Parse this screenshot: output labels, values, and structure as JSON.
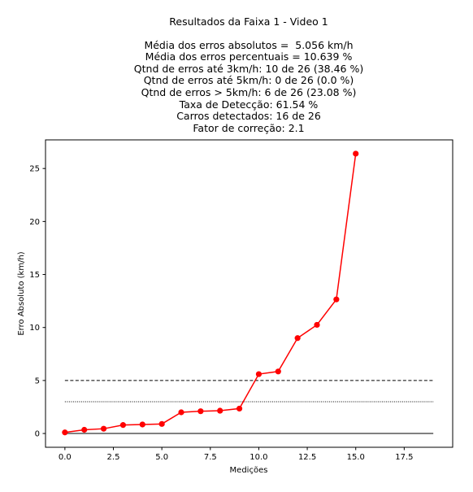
{
  "chart_data": {
    "type": "line",
    "title": "Resultados da Faixa 1 - Video 1",
    "stats_lines": [
      "Média dos erros absolutos =  5.056 km/h",
      "Média dos erros percentuais = 10.639 %",
      "Qtnd de erros até 3km/h: 10 de 26 (38.46 %)",
      "Qtnd de erros até 5km/h: 0 de 26 (0.0 %)",
      "Qtnd de erros > 5km/h: 6 de 26 (23.08 %)",
      "Taxa de Detecção: 61.54 %",
      "Carros detectados: 16 de 26",
      "Fator de correção: 2.1"
    ],
    "xlabel": "Medições",
    "ylabel": "Erro Absoluto (km/h)",
    "xlim": [
      -1.0,
      20.0
    ],
    "ylim": [
      -1.3,
      27.7
    ],
    "xticks": [
      0.0,
      2.5,
      5.0,
      7.5,
      10.0,
      12.5,
      15.0,
      17.5
    ],
    "xtick_labels": [
      "0.0",
      "2.5",
      "5.0",
      "7.5",
      "10.0",
      "12.5",
      "15.0",
      "17.5"
    ],
    "yticks": [
      0,
      5,
      10,
      15,
      20,
      25
    ],
    "ytick_labels": [
      "0",
      "5",
      "10",
      "15",
      "20",
      "25"
    ],
    "grid": false,
    "series": [
      {
        "color": "#ff0000",
        "marker": "circle",
        "x": [
          0,
          1,
          2,
          3,
          4,
          5,
          6,
          7,
          8,
          9,
          10,
          11,
          12,
          13,
          14,
          15
        ],
        "values": [
          0.1,
          0.35,
          0.45,
          0.8,
          0.85,
          0.9,
          2.0,
          2.1,
          2.15,
          2.35,
          5.6,
          5.85,
          9.0,
          10.25,
          12.65,
          26.4
        ]
      }
    ],
    "reference_lines": [
      {
        "y": 5,
        "style": "dashed",
        "color": "#000000",
        "x_range": [
          0,
          19
        ]
      },
      {
        "y": 3,
        "style": "dotted",
        "color": "#000000",
        "x_range": [
          0,
          19
        ]
      },
      {
        "y": 0,
        "style": "solid",
        "color": "#000000",
        "x_range": [
          0,
          19
        ]
      }
    ]
  }
}
